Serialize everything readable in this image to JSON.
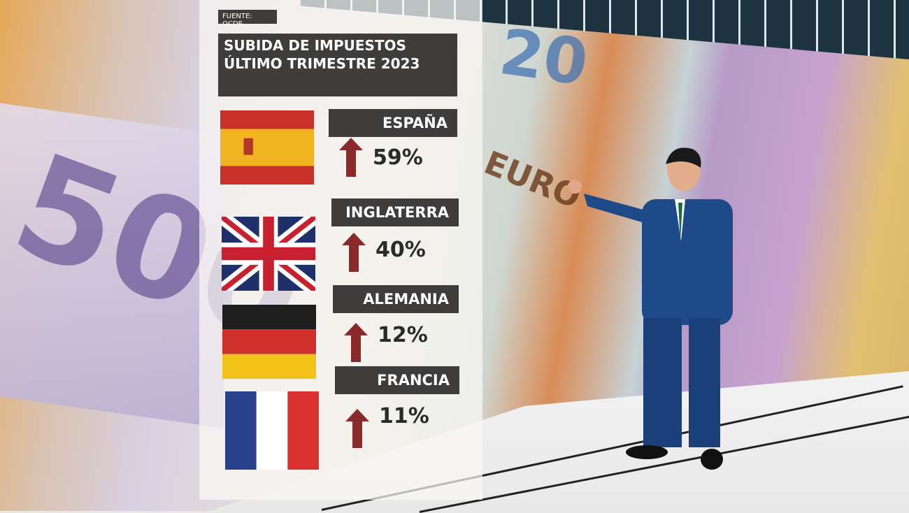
{
  "graphic": {
    "source": "FUENTE: OCDE",
    "title_line1": "SUBIDA DE IMPUESTOS",
    "title_line2": "ÚLTIMO TRIMESTRE 2023",
    "arrow_color": "#8b2a2a",
    "countries": [
      {
        "name": "ESPAÑA",
        "value": "59%",
        "flag": "spain-flag"
      },
      {
        "name": "INGLATERRA",
        "value": "40%",
        "flag": "uk-flag"
      },
      {
        "name": "ALEMANIA",
        "value": "12%",
        "flag": "germany-flag"
      },
      {
        "name": "FRANCIA",
        "value": "11%",
        "flag": "france-flag"
      }
    ]
  },
  "background": {
    "note1": "500",
    "note2": "20",
    "note3": "EURO"
  }
}
